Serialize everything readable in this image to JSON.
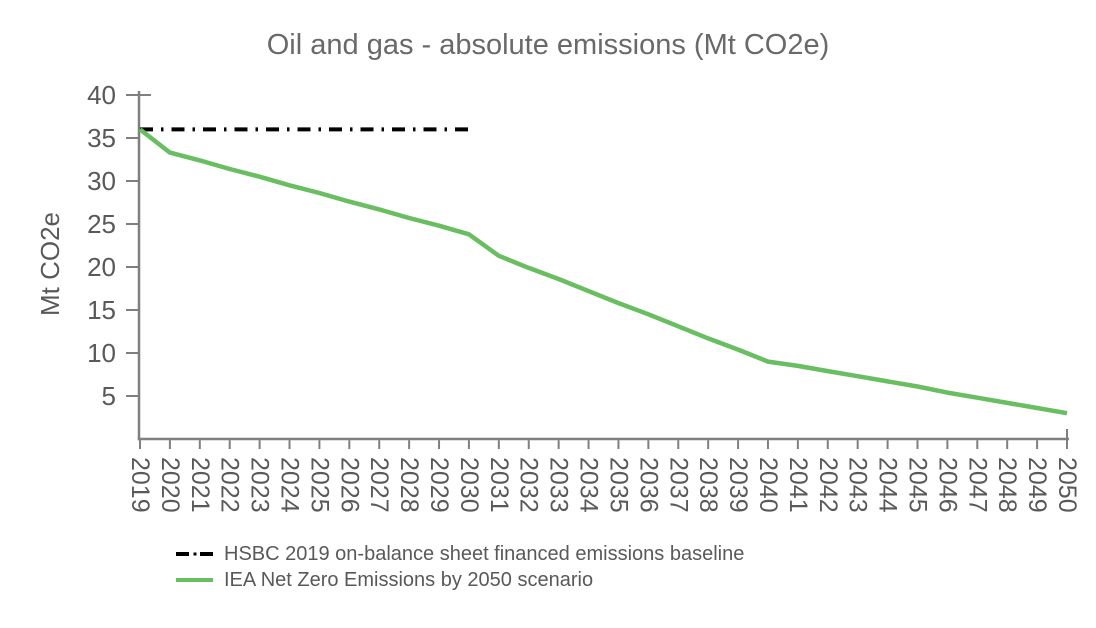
{
  "title": "Oil and gas - absolute emissions (Mt CO2e)",
  "colors": {
    "axis": "#7f7f7f",
    "tick_text": "#595959",
    "title_text": "#696969",
    "baseline_black": "#000000",
    "iea_green": "#6abe62"
  },
  "chart_data": {
    "type": "line",
    "title": "Oil and gas - absolute emissions (Mt CO2e)",
    "xlabel": "",
    "ylabel": "Mt CO2e",
    "ylim": [
      0,
      40
    ],
    "xlim": [
      2019,
      2050
    ],
    "yticks": [
      5,
      10,
      15,
      20,
      25,
      30,
      35,
      40
    ],
    "x": [
      2019,
      2020,
      2021,
      2022,
      2023,
      2024,
      2025,
      2026,
      2027,
      2028,
      2029,
      2030,
      2031,
      2032,
      2033,
      2034,
      2035,
      2036,
      2037,
      2038,
      2039,
      2040,
      2041,
      2042,
      2043,
      2044,
      2045,
      2046,
      2047,
      2048,
      2049,
      2050
    ],
    "grid": false,
    "legend_position": "bottom",
    "series": [
      {
        "name": "HSBC 2019 on-balance sheet financed emissions baseline",
        "style": "dashdot",
        "color": "#000000",
        "x": [
          2019,
          2030
        ],
        "values": [
          36,
          36
        ]
      },
      {
        "name": "IEA Net Zero Emissions by 2050 scenario",
        "style": "solid",
        "color": "#6abe62",
        "x": [
          2019,
          2020,
          2021,
          2022,
          2023,
          2024,
          2025,
          2026,
          2027,
          2028,
          2029,
          2030,
          2031,
          2032,
          2033,
          2034,
          2035,
          2036,
          2037,
          2038,
          2039,
          2040,
          2041,
          2042,
          2043,
          2044,
          2045,
          2046,
          2047,
          2048,
          2049,
          2050
        ],
        "values": [
          36,
          33.3,
          32.4,
          31.4,
          30.5,
          29.5,
          28.6,
          27.6,
          26.7,
          25.7,
          24.8,
          23.8,
          21.3,
          19.9,
          18.6,
          17.2,
          15.8,
          14.5,
          13.1,
          11.7,
          10.4,
          9,
          8.5,
          7.9,
          7.3,
          6.7,
          6.1,
          5.4,
          4.8,
          4.2,
          3.6,
          3
        ]
      }
    ]
  },
  "legend": {
    "items": [
      {
        "label": "HSBC 2019 on-balance sheet financed emissions baseline"
      },
      {
        "label": "IEA Net Zero Emissions by 2050 scenario"
      }
    ]
  }
}
